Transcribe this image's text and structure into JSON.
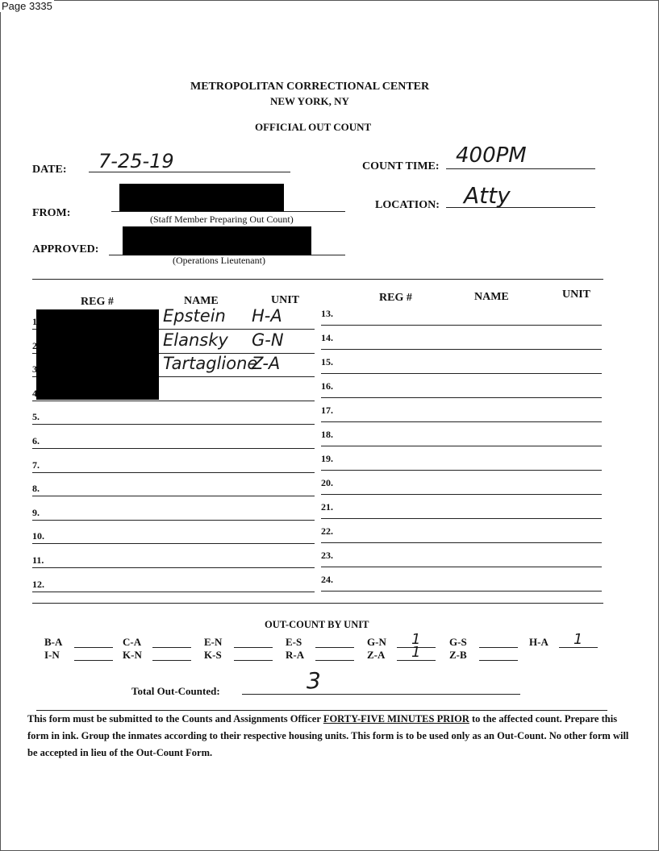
{
  "page_label": "Page 3335",
  "header": {
    "institution": "METROPOLITAN CORRECTIONAL CENTER",
    "city": "NEW YORK, NY",
    "form_title": "OFFICIAL OUT COUNT"
  },
  "fields": {
    "date_label": "DATE:",
    "date_value": "7-25-19",
    "from_label": "FROM:",
    "from_caption": "(Staff Member Preparing Out Count)",
    "approved_label": "APPROVED:",
    "approved_caption": "(Operations Lieutenant)",
    "count_time_label": "COUNT TIME:",
    "count_time_value": "400PM",
    "location_label": "LOCATION:",
    "location_value": "Atty"
  },
  "table": {
    "headers": {
      "reg": "REG #",
      "name": "NAME",
      "unit": "UNIT"
    },
    "left_rows": [
      {
        "num": "1.",
        "name": "Epstein",
        "unit": "H-A"
      },
      {
        "num": "2.",
        "name": "Elansky",
        "unit": "G-N"
      },
      {
        "num": "3.",
        "name": "Tartaglione",
        "unit": "Z-A"
      },
      {
        "num": "4.",
        "name": "",
        "unit": ""
      },
      {
        "num": "5.",
        "name": "",
        "unit": ""
      },
      {
        "num": "6.",
        "name": "",
        "unit": ""
      },
      {
        "num": "7.",
        "name": "",
        "unit": ""
      },
      {
        "num": "8.",
        "name": "",
        "unit": ""
      },
      {
        "num": "9.",
        "name": "",
        "unit": ""
      },
      {
        "num": "10.",
        "name": "",
        "unit": ""
      },
      {
        "num": "11.",
        "name": "",
        "unit": ""
      },
      {
        "num": "12.",
        "name": "",
        "unit": ""
      }
    ],
    "right_rows": [
      {
        "num": "13."
      },
      {
        "num": "14."
      },
      {
        "num": "15."
      },
      {
        "num": "16."
      },
      {
        "num": "17."
      },
      {
        "num": "18."
      },
      {
        "num": "19."
      },
      {
        "num": "20."
      },
      {
        "num": "21."
      },
      {
        "num": "22."
      },
      {
        "num": "23."
      },
      {
        "num": "24."
      }
    ]
  },
  "out_count": {
    "title": "OUT-COUNT BY UNIT",
    "row1": [
      {
        "unit": "B-A",
        "value": ""
      },
      {
        "unit": "C-A",
        "value": ""
      },
      {
        "unit": "E-N",
        "value": ""
      },
      {
        "unit": "E-S",
        "value": ""
      },
      {
        "unit": "G-N",
        "value": "1"
      },
      {
        "unit": "G-S",
        "value": ""
      },
      {
        "unit": "H-A",
        "value": "1"
      }
    ],
    "row2": [
      {
        "unit": "I-N",
        "value": ""
      },
      {
        "unit": "K-N",
        "value": ""
      },
      {
        "unit": "K-S",
        "value": ""
      },
      {
        "unit": "R-A",
        "value": ""
      },
      {
        "unit": "Z-A",
        "value": "1"
      },
      {
        "unit": "Z-B",
        "value": ""
      }
    ],
    "total_label": "Total Out-Counted:",
    "total_value": "3"
  },
  "footer": {
    "text_before": "This form must be submitted to the Counts and Assignments Officer ",
    "text_emphasis": "FORTY-FIVE MINUTES PRIOR",
    "text_after": " to the affected count. Prepare this form in ink.  Group the inmates according to their respective housing units.  This form is to be used only as an Out-Count.  No other form will be accepted in lieu of the Out-Count Form."
  }
}
